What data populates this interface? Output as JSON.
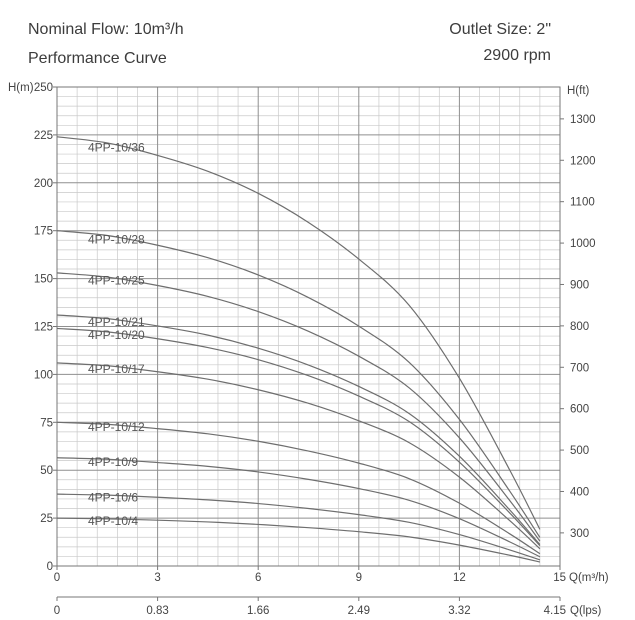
{
  "chart_data": {
    "type": "line",
    "title": "Performance Curve",
    "annotations": [
      "Nominal Flow: 10m³/h",
      "Outlet Size: 2\"",
      "2900 rpm"
    ],
    "xlabel": "Q(m³/h)",
    "x2label": "Q(lps)",
    "ylabel": "H(m)",
    "y2label": "H(ft)",
    "xlim": [
      0,
      15
    ],
    "x2lim": [
      0,
      4.15
    ],
    "ylim": [
      0,
      250
    ],
    "y2lim": [
      220,
      1377
    ],
    "xticks": [
      0,
      3,
      6,
      9,
      12,
      15
    ],
    "x2ticks": [
      0,
      0.83,
      1.66,
      2.49,
      3.32,
      4.15
    ],
    "yticks": [
      0,
      25,
      50,
      75,
      100,
      125,
      150,
      175,
      200,
      225,
      250
    ],
    "y2ticks": [
      300,
      400,
      500,
      600,
      700,
      800,
      900,
      1000,
      1100,
      1200,
      1300
    ],
    "grid": true,
    "colors": {
      "curve": "#6e6e6e",
      "grid_major": "#8f8f8f",
      "grid_minor": "#c9c9c9",
      "frame": "#777777",
      "text": "#3c3c3c"
    },
    "x": [
      0,
      1.5,
      3,
      4.5,
      6,
      7.5,
      9,
      10.5,
      12,
      13.5,
      14.4
    ],
    "series": [
      {
        "name": "4PP-10/36",
        "values": [
          224,
          220.8,
          214.3,
          206.0,
          194.5,
          179.3,
          160.2,
          136.1,
          98.0,
          50.1,
          19.1
        ]
      },
      {
        "name": "4PP-10/28",
        "values": [
          175,
          172.5,
          167.4,
          160.9,
          151.9,
          140.1,
          125.2,
          106.3,
          76.5,
          39.1,
          14.9
        ]
      },
      {
        "name": "4PP-10/25",
        "values": [
          153,
          150.8,
          146.4,
          140.7,
          132.8,
          122.5,
          109.5,
          93.0,
          66.9,
          34.2,
          13.0
        ]
      },
      {
        "name": "4PP-10/21",
        "values": [
          131,
          129.1,
          125.3,
          120.5,
          113.7,
          104.9,
          93.7,
          79.6,
          57.3,
          29.3,
          11.2
        ]
      },
      {
        "name": "4PP-10/20",
        "values": [
          124,
          122.2,
          118.6,
          114.0,
          107.7,
          99.3,
          88.7,
          75.4,
          54.2,
          27.7,
          10.6
        ]
      },
      {
        "name": "4PP-10/17",
        "values": [
          106,
          104.5,
          101.4,
          97.5,
          92.0,
          84.9,
          75.8,
          64.4,
          46.4,
          23.7,
          9.0
        ]
      },
      {
        "name": "4PP-10/12",
        "values": [
          75,
          73.9,
          71.7,
          69.0,
          65.1,
          60.0,
          53.7,
          45.6,
          32.8,
          16.8,
          6.4
        ]
      },
      {
        "name": "4PP-10/9",
        "values": [
          56.5,
          55.7,
          54.0,
          52.0,
          49.1,
          45.2,
          40.4,
          34.3,
          24.7,
          12.6,
          4.8
        ]
      },
      {
        "name": "4PP-10/6",
        "values": [
          37.5,
          37.0,
          35.9,
          34.5,
          32.6,
          30.0,
          26.8,
          22.8,
          16.4,
          8.4,
          3.2
        ]
      },
      {
        "name": "4PP-10/4",
        "values": [
          25,
          24.6,
          23.9,
          23.0,
          21.7,
          20.0,
          17.9,
          15.2,
          10.9,
          5.6,
          2.1
        ]
      }
    ]
  }
}
